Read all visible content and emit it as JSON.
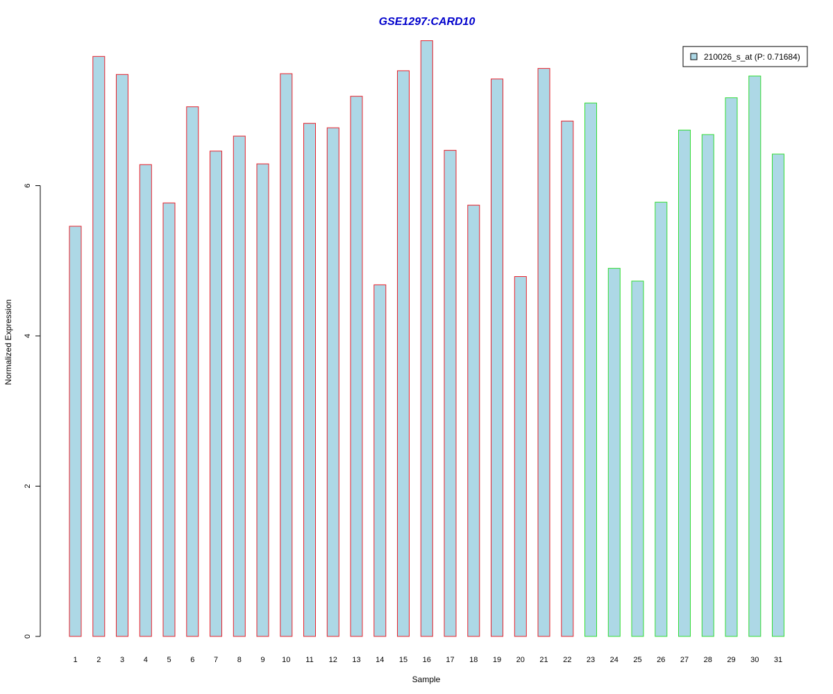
{
  "chart_data": {
    "type": "bar",
    "title": "GSE1297:CARD10",
    "xlabel": "Sample",
    "ylabel": "Normalized Expression",
    "categories": [
      "1",
      "2",
      "3",
      "4",
      "5",
      "6",
      "7",
      "8",
      "9",
      "10",
      "11",
      "12",
      "13",
      "14",
      "15",
      "16",
      "17",
      "18",
      "19",
      "20",
      "21",
      "22",
      "23",
      "24",
      "25",
      "26",
      "27",
      "28",
      "29",
      "30",
      "31"
    ],
    "series": [
      {
        "name": "210026_s_at (P: 0.71684)",
        "values": [
          5.46,
          7.72,
          7.48,
          6.28,
          5.77,
          7.05,
          6.46,
          6.66,
          6.29,
          7.49,
          6.83,
          6.77,
          7.19,
          4.68,
          7.53,
          7.93,
          6.47,
          5.74,
          7.42,
          4.79,
          7.56,
          6.86,
          7.1,
          4.9,
          4.73,
          5.78,
          6.74,
          6.68,
          7.17,
          7.46,
          6.42
        ]
      }
    ],
    "group_border_colors": [
      "#e8202a",
      "#e8202a",
      "#e8202a",
      "#e8202a",
      "#e8202a",
      "#e8202a",
      "#e8202a",
      "#e8202a",
      "#e8202a",
      "#e8202a",
      "#e8202a",
      "#e8202a",
      "#e8202a",
      "#e8202a",
      "#e8202a",
      "#e8202a",
      "#e8202a",
      "#e8202a",
      "#e8202a",
      "#e8202a",
      "#e8202a",
      "#e8202a",
      "#33dd33",
      "#33dd33",
      "#33dd33",
      "#33dd33",
      "#33dd33",
      "#33dd33",
      "#33dd33",
      "#33dd33",
      "#33dd33"
    ],
    "bar_fill": "#add8e6",
    "title_color": "#0000cc",
    "yticks": [
      0,
      2,
      4,
      6
    ],
    "ylim": [
      0,
      8.0
    ],
    "legend_position": "top-right",
    "grid": false
  }
}
